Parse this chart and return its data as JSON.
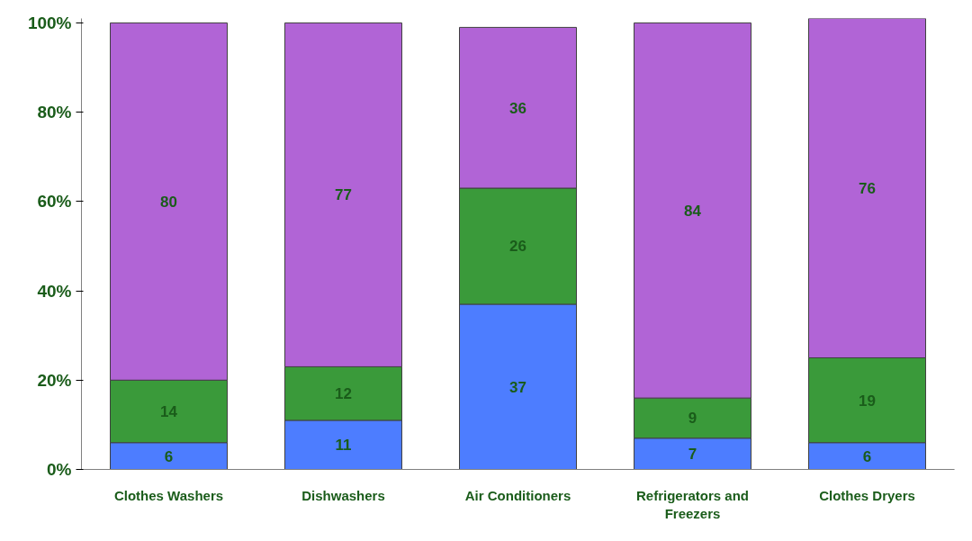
{
  "chart_data": {
    "type": "bar",
    "stacked": true,
    "categories": [
      "Clothes Washers",
      "Dishwashers",
      "Air Conditioners",
      "Refrigerators and Freezers",
      "Clothes Dryers"
    ],
    "series": [
      {
        "color": "#4d7dff",
        "values": [
          6,
          11,
          37,
          7,
          6
        ]
      },
      {
        "color": "#3a9a3a",
        "values": [
          14,
          12,
          26,
          9,
          19
        ]
      },
      {
        "color": "#b164d6",
        "values": [
          80,
          77,
          36,
          84,
          76
        ]
      }
    ],
    "data_labels": true,
    "ylim": [
      0,
      101
    ],
    "yticks": [
      {
        "value": 0,
        "label": "0%"
      },
      {
        "value": 20,
        "label": "20%"
      },
      {
        "value": 40,
        "label": "40%"
      },
      {
        "value": 60,
        "label": "60%"
      },
      {
        "value": 80,
        "label": "80%"
      },
      {
        "value": 100,
        "label": "100%"
      }
    ],
    "grid": false
  }
}
